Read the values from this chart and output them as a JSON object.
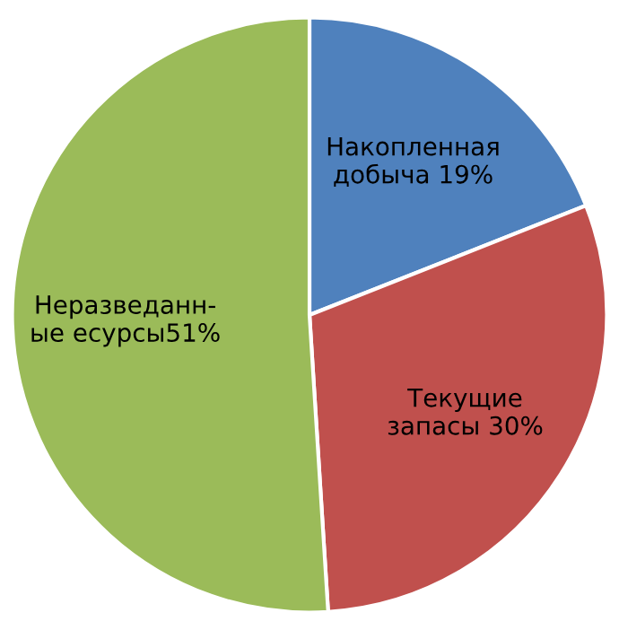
{
  "chart_data": {
    "type": "pie",
    "categories": [
      "Накопленная\nдобыча 19%",
      "Текущие\nзапасы 30%",
      "Неразведанн-\nые есурсы51%"
    ],
    "values": [
      19,
      30,
      51
    ],
    "colors": [
      "#4f81bd",
      "#c0504d",
      "#9bbb59"
    ],
    "legend": false
  }
}
